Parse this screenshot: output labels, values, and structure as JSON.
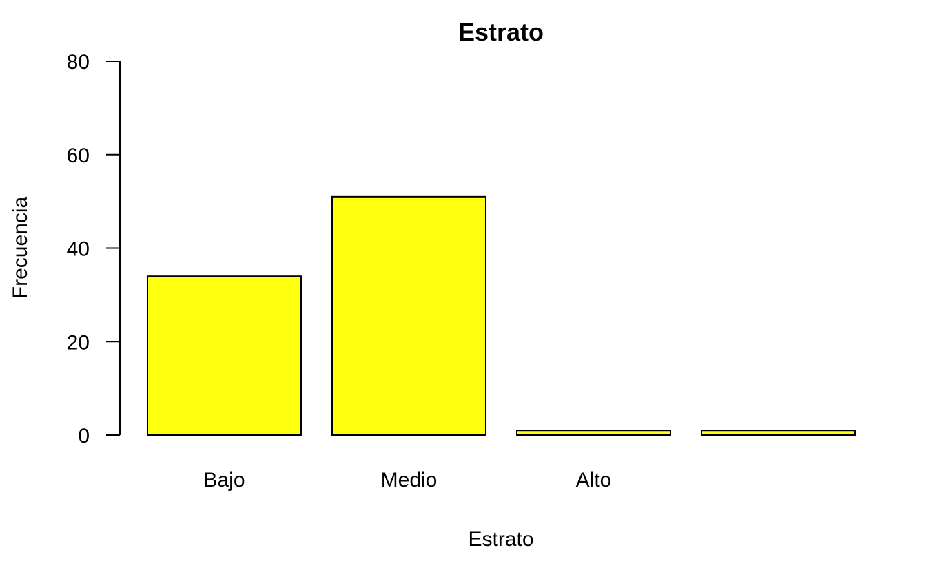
{
  "chart_data": {
    "type": "bar",
    "title": "Estrato",
    "xlabel": "Estrato",
    "ylabel": "Frecuencia",
    "categories": [
      "Bajo",
      "Medio",
      "Alto",
      ""
    ],
    "values": [
      34,
      51,
      1,
      1
    ],
    "ylim": [
      0,
      80
    ],
    "yticks": [
      0,
      20,
      40,
      60,
      80
    ],
    "bar_color": "#ffff10",
    "border_color": "#000000",
    "grid": false,
    "legend": "none"
  }
}
